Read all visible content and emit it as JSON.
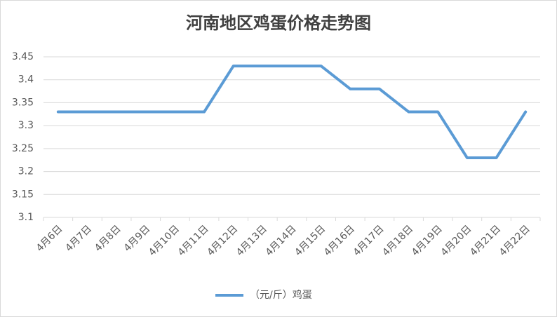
{
  "chart_data": {
    "type": "line",
    "title": "河南地区鸡蛋价格走势图",
    "categories": [
      "4月6日",
      "4月7日",
      "4月8日",
      "4月9日",
      "4月10日",
      "4月11日",
      "4月12日",
      "4月13日",
      "4月14日",
      "4月15日",
      "4月16日",
      "4月17日",
      "4月18日",
      "4月19日",
      "4月20日",
      "4月21日",
      "4月22日"
    ],
    "series": [
      {
        "name": "（元/斤）鸡蛋",
        "color": "#5b9bd5",
        "values": [
          3.33,
          3.33,
          3.33,
          3.33,
          3.33,
          3.33,
          3.43,
          3.43,
          3.43,
          3.43,
          3.38,
          3.38,
          3.33,
          3.33,
          3.23,
          3.23,
          3.33
        ]
      }
    ],
    "ylim": [
      3.1,
      3.45
    ],
    "yticks": [
      3.1,
      3.15,
      3.2,
      3.25,
      3.3,
      3.35,
      3.4,
      3.45
    ],
    "grid": true,
    "legend": "bottom"
  }
}
